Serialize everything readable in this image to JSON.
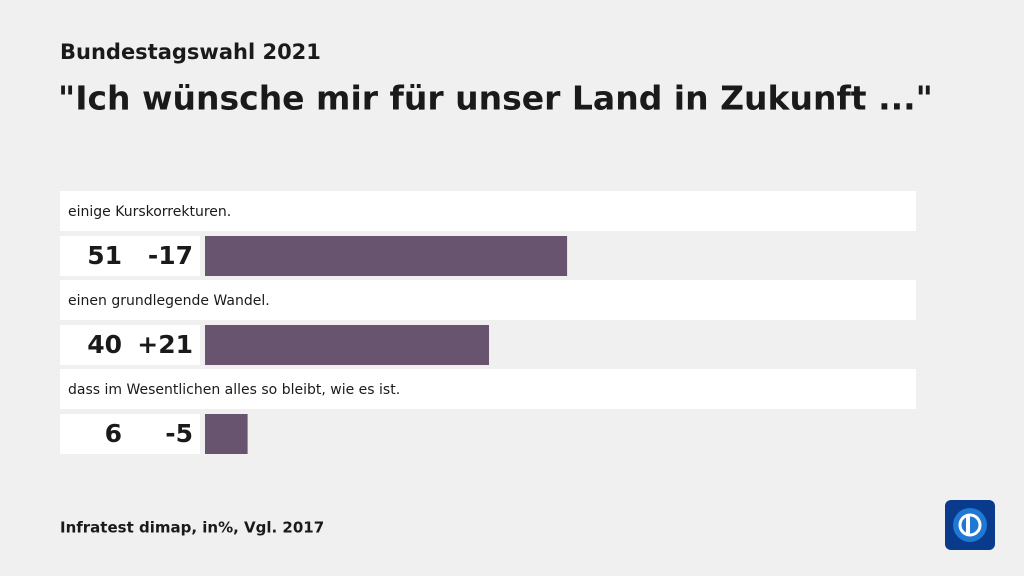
{
  "chart_data": {
    "type": "bar",
    "subtitle": "Bundestagswahl 2021",
    "title": "\"Ich wünsche mir für unser Land in Zukunft ...\"",
    "categories": [
      "einige Kurskorrekturen.",
      "einen grundlegende Wandel.",
      "dass im Wesentlichen alles so bleibt, wie es ist."
    ],
    "values": [
      51,
      40,
      6
    ],
    "changes": {
      "values": [
        -17,
        21,
        -5
      ],
      "value_labels": [
        "-17",
        "+21",
        "-5"
      ]
    },
    "color": "#695470",
    "source": "Infratest dimap, in%, Vgl. 2017"
  }
}
